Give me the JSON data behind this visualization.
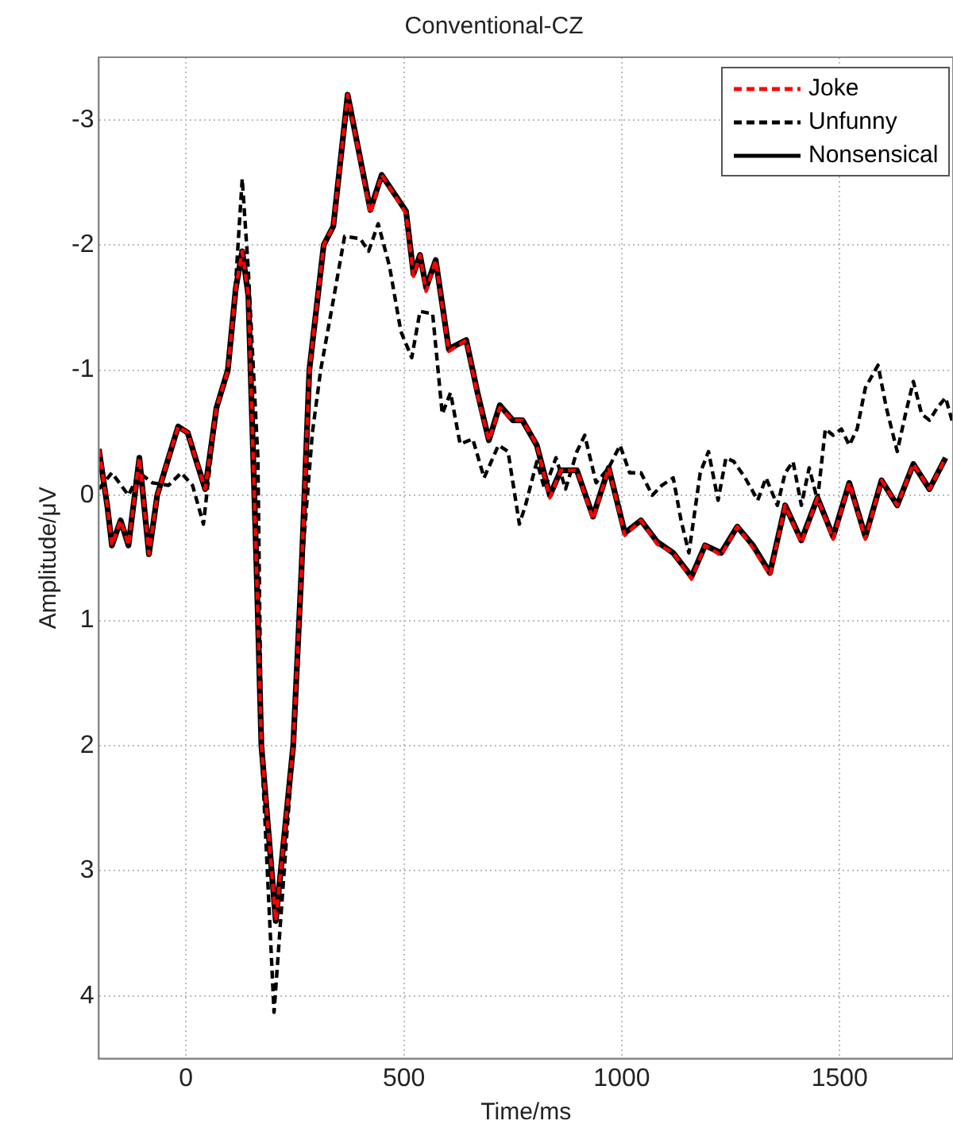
{
  "chart_data": {
    "type": "line",
    "title": "Conventional-CZ",
    "xlabel": "Time/ms",
    "ylabel": "Amplitude/μV",
    "xlim": [
      -200,
      1760
    ],
    "xticks": [
      0,
      500,
      1000,
      1500
    ],
    "ylim": [
      4.5,
      -3.5
    ],
    "yticks": [
      -3,
      -2,
      -1,
      0,
      1,
      2,
      3,
      4
    ],
    "grid": true,
    "legend": "top right",
    "marker": "none",
    "series": [
      {
        "name": "Joke",
        "color": "#ff0000",
        "line_style": "dashed",
        "x": [
          -200,
          -180,
          -170,
          -150,
          -132,
          -107,
          -85,
          -66,
          -40,
          -18,
          4,
          26,
          44,
          70,
          96,
          114,
          129,
          143,
          162,
          173,
          206,
          246,
          265,
          283,
          316,
          338,
          371,
          423,
          449,
          505,
          522,
          537,
          551,
          573,
          603,
          643,
          669,
          695,
          720,
          750,
          772,
          805,
          835,
          860,
          897,
          934,
          970,
          1007,
          1044,
          1081,
          1118,
          1160,
          1191,
          1228,
          1265,
          1301,
          1340,
          1375,
          1412,
          1449,
          1485,
          1522,
          1559,
          1596,
          1632,
          1669,
          1706,
          1743
        ],
        "values": [
          -0.37,
          0.1,
          0.4,
          0.2,
          0.4,
          -0.3,
          0.47,
          0,
          -0.3,
          -0.55,
          -0.5,
          -0.25,
          -0.05,
          -0.7,
          -1.0,
          -1.65,
          -1.95,
          -1.6,
          0.6,
          2.0,
          3.4,
          2.0,
          0.6,
          -1.0,
          -2.0,
          -2.15,
          -3.2,
          -2.25,
          -2.56,
          -2.25,
          -1.75,
          -1.92,
          -1.63,
          -1.88,
          -1.15,
          -1.24,
          -0.8,
          -0.44,
          -0.7,
          -0.6,
          -0.6,
          -0.4,
          0.02,
          -0.2,
          -0.2,
          0.19,
          -0.22,
          0.32,
          0.2,
          0.39,
          0.46,
          0.67,
          0.4,
          0.48,
          0.25,
          0.42,
          0.64,
          0.08,
          0.38,
          0.02,
          0.35,
          -0.1,
          0.35,
          -0.12,
          0.08,
          -0.25,
          -0.05,
          -0.3
        ]
      },
      {
        "name": "Unfunny",
        "color": "#000000",
        "line_style": "dashed",
        "x": [
          -200,
          -170,
          -132,
          -107,
          -77,
          -40,
          -11,
          15,
          40,
          70,
          96,
          114,
          129,
          143,
          165,
          173,
          202,
          246,
          265,
          290,
          309,
          335,
          364,
          400,
          419,
          441,
          467,
          493,
          518,
          537,
          566,
          588,
          607,
          629,
          658,
          684,
          717,
          739,
          765,
          779,
          805,
          823,
          849,
          871,
          897,
          915,
          941,
          970,
          996,
          1018,
          1044,
          1070,
          1092,
          1118,
          1136,
          1154,
          1180,
          1199,
          1221,
          1239,
          1257,
          1283,
          1312,
          1331,
          1357,
          1375,
          1393,
          1412,
          1430,
          1449,
          1467,
          1485,
          1504,
          1522,
          1540,
          1559,
          1588,
          1607,
          1632,
          1651,
          1669,
          1688,
          1706,
          1724,
          1743,
          1760
        ],
        "values": [
          -0.05,
          -0.18,
          0,
          -0.18,
          -0.1,
          -0.08,
          -0.18,
          -0.08,
          0.23,
          -0.7,
          -1.0,
          -1.7,
          -2.53,
          -1.8,
          -0.3,
          2.0,
          4.13,
          2.0,
          0.6,
          -0.5,
          -1.0,
          -1.5,
          -2.07,
          -2.05,
          -1.95,
          -2.17,
          -1.83,
          -1.31,
          -1.1,
          -1.47,
          -1.45,
          -0.65,
          -0.82,
          -0.41,
          -0.45,
          -0.14,
          -0.4,
          -0.35,
          0.23,
          0.08,
          -0.27,
          -0.05,
          -0.3,
          -0.05,
          -0.35,
          -0.48,
          -0.1,
          -0.22,
          -0.4,
          -0.18,
          -0.18,
          0,
          -0.08,
          -0.14,
          0.2,
          0.46,
          -0.18,
          -0.35,
          0.04,
          -0.3,
          -0.27,
          -0.14,
          0.04,
          -0.14,
          0.08,
          -0.18,
          -0.27,
          0.08,
          -0.22,
          0.04,
          -0.53,
          -0.48,
          -0.53,
          -0.4,
          -0.53,
          -0.86,
          -1.04,
          -0.7,
          -0.35,
          -0.65,
          -0.91,
          -0.65,
          -0.6,
          -0.7,
          -0.78,
          -0.57
        ]
      },
      {
        "name": "Nonsensical",
        "color": "#000000",
        "line_style": "solid",
        "x": [
          -200,
          -180,
          -170,
          -150,
          -132,
          -107,
          -85,
          -66,
          -40,
          -18,
          4,
          26,
          44,
          70,
          96,
          114,
          129,
          143,
          162,
          173,
          206,
          246,
          265,
          283,
          316,
          338,
          371,
          423,
          449,
          505,
          522,
          537,
          551,
          573,
          603,
          643,
          669,
          695,
          720,
          750,
          772,
          805,
          835,
          860,
          897,
          934,
          970,
          1007,
          1044,
          1081,
          1118,
          1160,
          1191,
          1228,
          1265,
          1301,
          1340,
          1375,
          1412,
          1449,
          1485,
          1522,
          1559,
          1596,
          1632,
          1669,
          1706,
          1743
        ],
        "values": [
          -0.37,
          0.1,
          0.4,
          0.2,
          0.4,
          -0.3,
          0.47,
          0,
          -0.3,
          -0.55,
          -0.5,
          -0.25,
          -0.05,
          -0.7,
          -1.0,
          -1.65,
          -1.95,
          -1.6,
          0.6,
          2.0,
          3.4,
          2.0,
          0.6,
          -1.0,
          -2.0,
          -2.15,
          -3.2,
          -2.28,
          -2.56,
          -2.27,
          -1.77,
          -1.92,
          -1.66,
          -1.88,
          -1.17,
          -1.24,
          -0.82,
          -0.44,
          -0.72,
          -0.6,
          -0.6,
          -0.4,
          0,
          -0.2,
          -0.2,
          0.17,
          -0.22,
          0.3,
          0.2,
          0.37,
          0.46,
          0.65,
          0.4,
          0.46,
          0.25,
          0.4,
          0.62,
          0.08,
          0.36,
          0.02,
          0.33,
          -0.1,
          0.33,
          -0.12,
          0.08,
          -0.25,
          -0.05,
          -0.3
        ]
      }
    ]
  }
}
